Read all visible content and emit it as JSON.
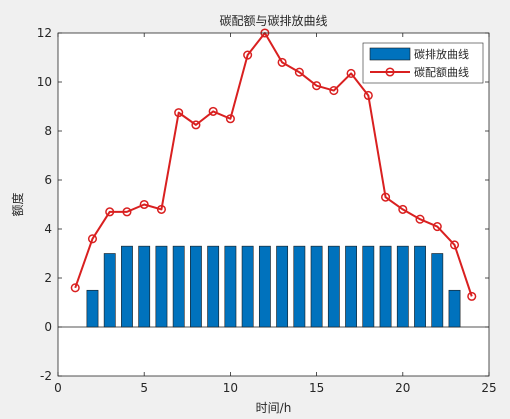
{
  "chart_data": {
    "type": "bar+line",
    "title": "碳配额与碳排放曲线",
    "xlabel": "时间/h",
    "ylabel": "额度",
    "xlim": [
      0,
      25
    ],
    "ylim": [
      -2,
      12
    ],
    "xticks": [
      "0",
      "5",
      "10",
      "15",
      "20",
      "25"
    ],
    "yticks": [
      "-2",
      "0",
      "2",
      "4",
      "6",
      "8",
      "10",
      "12"
    ],
    "grid": false,
    "legend_position": "top-right",
    "series": [
      {
        "name": "碳排放曲线",
        "type": "bar",
        "color": "#0072bd",
        "x": [
          1,
          2,
          3,
          4,
          5,
          6,
          7,
          8,
          9,
          10,
          11,
          12,
          13,
          14,
          15,
          16,
          17,
          18,
          19,
          20,
          21,
          22,
          23,
          24
        ],
        "values": [
          0,
          1.5,
          3.0,
          3.3,
          3.3,
          3.3,
          3.3,
          3.3,
          3.3,
          3.3,
          3.3,
          3.3,
          3.3,
          3.3,
          3.3,
          3.3,
          3.3,
          3.3,
          3.3,
          3.3,
          3.3,
          3.0,
          1.5,
          0
        ]
      },
      {
        "name": "碳配额曲线",
        "type": "line",
        "color": "#d92020",
        "marker": "circle",
        "x": [
          1,
          2,
          3,
          4,
          5,
          6,
          7,
          8,
          9,
          10,
          11,
          12,
          13,
          14,
          15,
          16,
          17,
          18,
          19,
          20,
          21,
          22,
          23,
          24
        ],
        "values": [
          1.6,
          3.6,
          4.7,
          4.7,
          5.0,
          4.8,
          8.75,
          8.25,
          8.8,
          8.5,
          11.1,
          12.0,
          10.8,
          10.4,
          9.85,
          9.65,
          10.35,
          9.45,
          5.3,
          4.8,
          4.4,
          4.1,
          3.35,
          1.25
        ]
      }
    ]
  }
}
